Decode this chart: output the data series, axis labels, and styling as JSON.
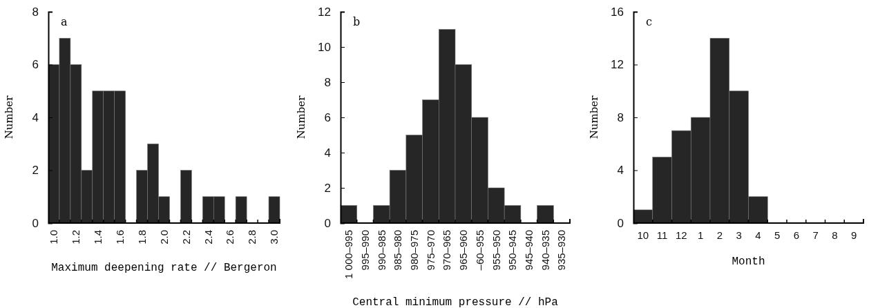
{
  "chart_data": [
    {
      "type": "bar",
      "xlabel": "Maximum deepening rate // Bergeron",
      "ylabel": "Number",
      "annotations": [
        "a"
      ],
      "categories": [
        "1.0",
        null,
        "1.2",
        null,
        "1.4",
        null,
        "1.6",
        null,
        "1.8",
        null,
        "2.0",
        null,
        "2.2",
        null,
        "2.4",
        null,
        "2.6",
        null,
        "2.8",
        null,
        "3.0"
      ],
      "values": [
        6,
        7,
        6,
        2,
        5,
        5,
        5,
        0,
        2,
        3,
        1,
        0,
        2,
        0,
        1,
        1,
        0,
        1,
        0,
        0,
        1
      ],
      "color": "#262626",
      "ylim": [
        0,
        8
      ],
      "yticks": [
        0,
        2,
        4,
        6,
        8
      ]
    },
    {
      "type": "bar",
      "xlabel": "Central minimum pressure // hPa",
      "ylabel": "Number",
      "annotations": [
        "b"
      ],
      "categories": [
        "1 000–995",
        "995–990",
        "990–985",
        "985–980",
        "980–975",
        "975–970",
        "970–965",
        "965–960",
        "–60–955",
        "955–950",
        "950–945",
        "945–940",
        "940–935",
        "935–930"
      ],
      "values": [
        1,
        0,
        1,
        3,
        5,
        7,
        11,
        9,
        6,
        2,
        1,
        0,
        1,
        0
      ],
      "color": "#262626",
      "ylim": [
        0,
        12
      ],
      "yticks": [
        0,
        2,
        4,
        6,
        8,
        10,
        12
      ]
    },
    {
      "type": "bar",
      "xlabel": "Month",
      "ylabel": "Number",
      "annotations": [
        "c"
      ],
      "categories": [
        "10",
        "11",
        "12",
        "1",
        "2",
        "3",
        "4",
        "5",
        "6",
        "7",
        "8",
        "9"
      ],
      "values": [
        1,
        5,
        7,
        8,
        14,
        10,
        2,
        0,
        0,
        0,
        0,
        0
      ],
      "color": "#262626",
      "ylim": [
        0,
        16
      ],
      "yticks": [
        0,
        4,
        8,
        12,
        16
      ]
    }
  ]
}
